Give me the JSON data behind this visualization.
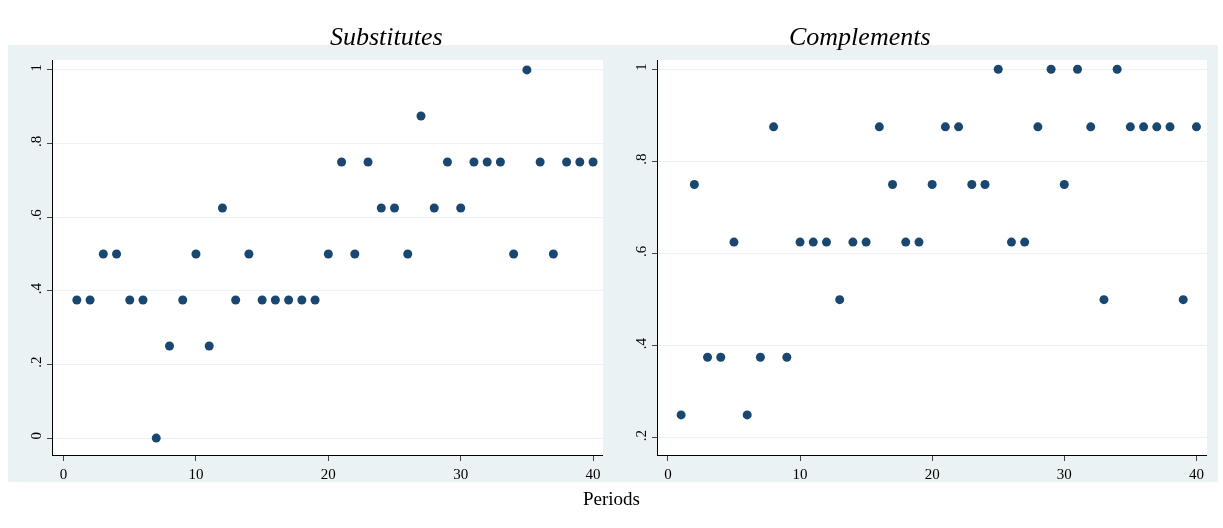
{
  "chart_data": [
    {
      "type": "scatter",
      "title": "Substitutes",
      "xlabel": "Periods",
      "marker": "circle",
      "grid": "y",
      "xlim": [
        -0.8,
        40.75
      ],
      "ylim": [
        -0.046,
        1.027
      ],
      "xticks": [
        0,
        10,
        20,
        30,
        40
      ],
      "yticks": [
        {
          "value": 0,
          "label": "0"
        },
        {
          "value": 0.2,
          "label": ".2"
        },
        {
          "value": 0.4,
          "label": ".4"
        },
        {
          "value": 0.6,
          "label": ".6"
        },
        {
          "value": 0.8,
          "label": ".8"
        },
        {
          "value": 1,
          "label": "1"
        }
      ],
      "x": [
        1,
        2,
        3,
        4,
        5,
        6,
        7,
        8,
        9,
        10,
        11,
        12,
        13,
        14,
        15,
        16,
        17,
        18,
        19,
        20,
        21,
        22,
        23,
        24,
        25,
        26,
        27,
        28,
        29,
        30,
        31,
        32,
        33,
        34,
        35,
        36,
        37,
        38,
        39,
        40
      ],
      "series": [
        {
          "color": "#1a476f",
          "values": [
            0.375,
            0.375,
            0.5,
            0.5,
            0.375,
            0.375,
            0,
            0.25,
            0.375,
            0.5,
            0.25,
            0.625,
            0.375,
            0.5,
            0.375,
            0.375,
            0.375,
            0.375,
            0.375,
            0.5,
            0.75,
            0.5,
            0.75,
            0.625,
            0.625,
            0.5,
            0.875,
            0.625,
            0.75,
            0.625,
            0.75,
            0.75,
            0.75,
            0.5,
            1,
            0.75,
            0.5,
            0.75,
            0.75,
            0.75
          ]
        }
      ]
    },
    {
      "type": "scatter",
      "title": "Complements",
      "marker": "circle",
      "grid": "y",
      "xlim": [
        -0.75,
        40.8
      ],
      "ylim": [
        0.163,
        1.02
      ],
      "xticks": [
        0,
        10,
        20,
        30,
        40
      ],
      "yticks": [
        {
          "value": 0.2,
          "label": ".2"
        },
        {
          "value": 0.4,
          "label": ".4"
        },
        {
          "value": 0.6,
          "label": ".6"
        },
        {
          "value": 0.8,
          "label": ".8"
        },
        {
          "value": 1,
          "label": "1"
        }
      ],
      "x": [
        1,
        2,
        3,
        4,
        5,
        6,
        7,
        8,
        9,
        10,
        11,
        12,
        13,
        14,
        15,
        16,
        17,
        18,
        19,
        20,
        21,
        22,
        23,
        24,
        25,
        26,
        27,
        28,
        29,
        30,
        31,
        32,
        33,
        34,
        35,
        36,
        37,
        38,
        39,
        40
      ],
      "series": [
        {
          "color": "#1a476f",
          "values": [
            0.25,
            0.75,
            0.375,
            0.375,
            0.625,
            0.25,
            0.375,
            0.875,
            0.375,
            0.625,
            0.625,
            0.625,
            0.5,
            0.625,
            0.625,
            0.875,
            0.75,
            0.625,
            0.625,
            0.75,
            0.875,
            0.875,
            0.75,
            0.75,
            1,
            0.625,
            0.625,
            0.875,
            1,
            0.75,
            1,
            0.875,
            0.5,
            1,
            0.875,
            0.875,
            0.875,
            0.875,
            0.5,
            0.875
          ]
        }
      ]
    }
  ]
}
